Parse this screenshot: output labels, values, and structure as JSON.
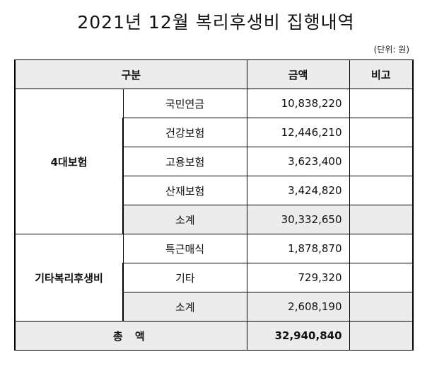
{
  "title": "2021년 12월 복리후생비 집행내역",
  "unit_note": "(단위: 원)",
  "table": {
    "headers": {
      "category": "구분",
      "amount": "금액",
      "note": "비고"
    },
    "groups": [
      {
        "name": "4대보험",
        "items": [
          {
            "label": "국민연금",
            "amount": "10,838,220",
            "note": ""
          },
          {
            "label": "건강보험",
            "amount": "12,446,210",
            "note": ""
          },
          {
            "label": "고용보험",
            "amount": "3,623,400",
            "note": ""
          },
          {
            "label": "산재보험",
            "amount": "3,424,820",
            "note": ""
          }
        ],
        "subtotal": {
          "label": "소계",
          "amount": "30,332,650",
          "note": ""
        }
      },
      {
        "name": "기타복리후생비",
        "items": [
          {
            "label": "특근매식",
            "amount": "1,878,870",
            "note": ""
          },
          {
            "label": "기타",
            "amount": "729,320",
            "note": ""
          }
        ],
        "subtotal": {
          "label": "소계",
          "amount": "2,608,190",
          "note": ""
        }
      }
    ],
    "total": {
      "label": "총 액",
      "amount": "32,940,840",
      "note": ""
    }
  }
}
